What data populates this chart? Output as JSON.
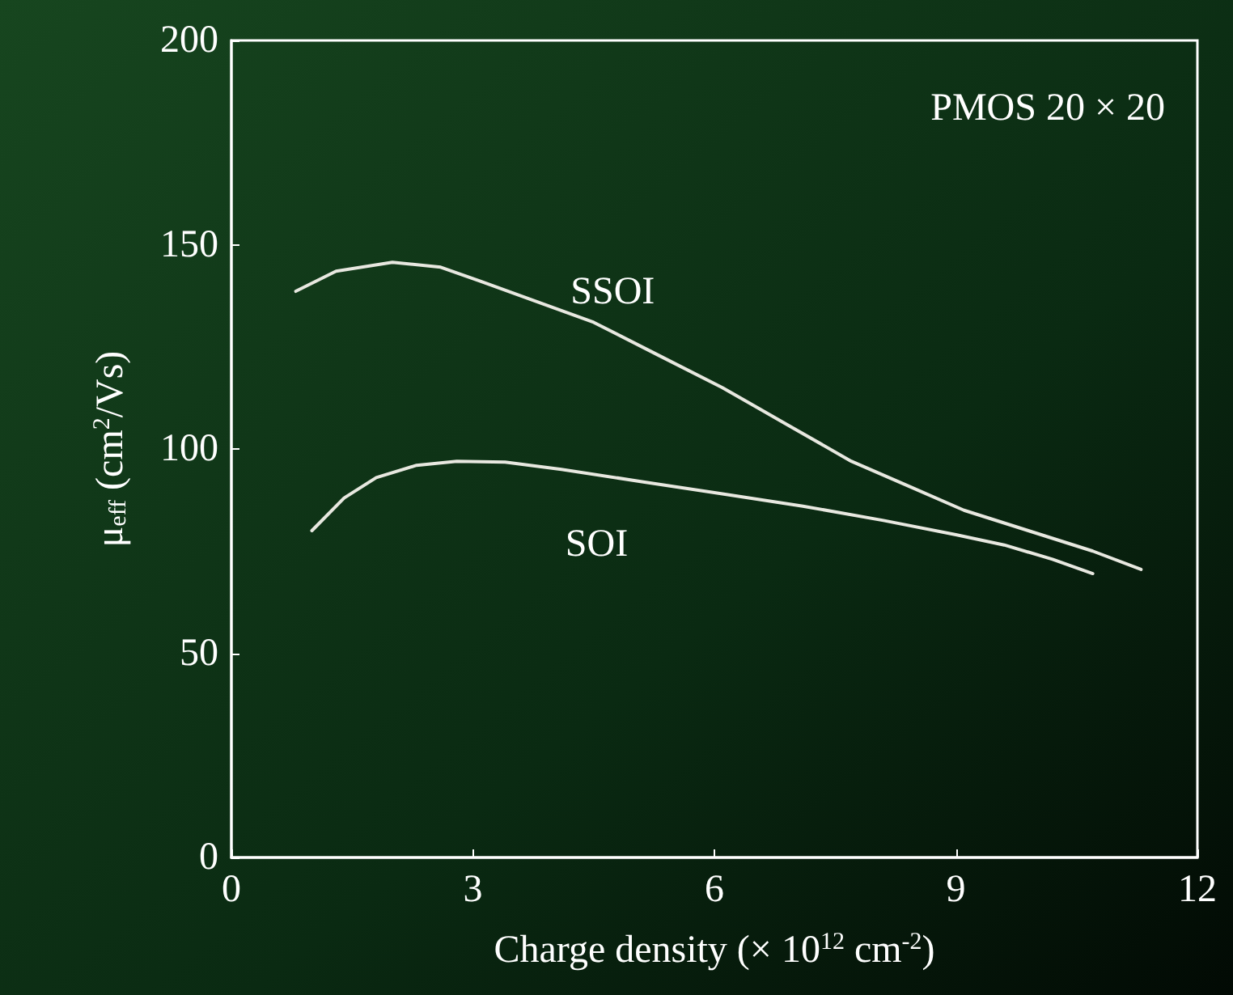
{
  "chart_data": {
    "type": "line",
    "xlabel": "Charge density (× 10$^{12}$ cm$^{-2}$)",
    "ylabel": "μ$_{eff}$ (cm$^{2}$/Vs)",
    "series": [
      {
        "name": "SSOI",
        "color": "#e8e8e0",
        "x": [
          0.8,
          1.3,
          2.0,
          2.6,
          3.1,
          3.8,
          4.5,
          5.3,
          6.1,
          6.9,
          7.7,
          8.4,
          9.1,
          9.9,
          10.7,
          11.3
        ],
        "values": [
          138.6,
          143.5,
          145.7,
          144.5,
          141,
          136,
          131,
          123,
          115,
          106,
          97,
          91,
          85,
          80,
          75,
          70.5
        ]
      },
      {
        "name": "SOI",
        "color": "#e8e8e0",
        "x": [
          1.0,
          1.4,
          1.8,
          2.3,
          2.8,
          3.4,
          4.1,
          5.1,
          6.1,
          7.1,
          8.1,
          9.0,
          9.6,
          10.2,
          10.7
        ],
        "values": [
          80,
          88,
          93,
          96,
          97,
          96.8,
          95,
          92,
          89,
          86,
          82.5,
          79,
          76.5,
          73,
          69.5
        ]
      }
    ],
    "xlim": [
      0,
      12
    ],
    "xticks": [
      0,
      3,
      6,
      9,
      12
    ],
    "ylim": [
      0,
      200
    ],
    "yticks": [
      0,
      50,
      100,
      150,
      200
    ],
    "grid": false,
    "marker": "none",
    "line_style": "solid",
    "annotations": [
      "PMOS 20 × 20"
    ]
  }
}
